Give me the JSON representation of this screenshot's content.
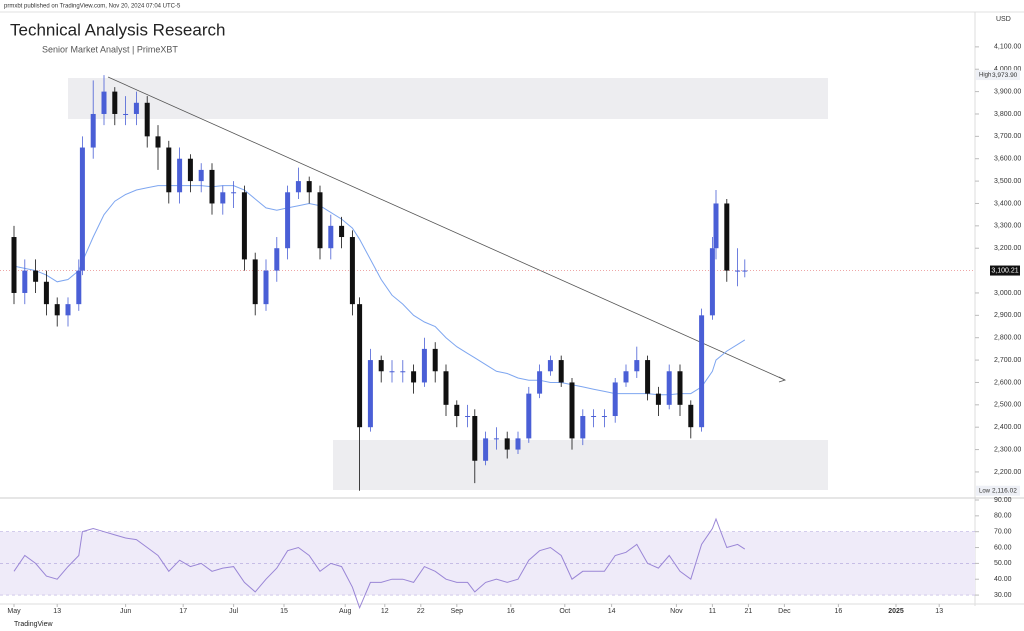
{
  "header": {
    "published": "prmxbt published on TradingView.com, Nov 20, 2024 07:04 UTC-5",
    "footer": "TradingView"
  },
  "chart_data": {
    "type": "candlestick",
    "title": "Technical Analysis Research",
    "subtitle": "Senior Market Analyst | PrimeXBT",
    "currency": "USD",
    "x": [
      "May 1",
      "May 4",
      "May 7",
      "May 10",
      "May 13",
      "May 16",
      "May 19",
      "May 20",
      "May 23",
      "May 26",
      "May 29",
      "Jun 1",
      "Jun 4",
      "Jun 7",
      "Jun 10",
      "Jun 13",
      "Jun 16",
      "Jun 19",
      "Jun 22",
      "Jun 25",
      "Jun 28",
      "Jul 1",
      "Jul 4",
      "Jul 7",
      "Jul 10",
      "Jul 13",
      "Jul 16",
      "Jul 19",
      "Jul 22",
      "Jul 25",
      "Jul 28",
      "Jul 31",
      "Aug 3",
      "Aug 5",
      "Aug 8",
      "Aug 11",
      "Aug 14",
      "Aug 17",
      "Aug 20",
      "Aug 23",
      "Aug 26",
      "Aug 29",
      "Sep 1",
      "Sep 4",
      "Sep 6",
      "Sep 9",
      "Sep 12",
      "Sep 15",
      "Sep 18",
      "Sep 21",
      "Sep 24",
      "Sep 27",
      "Sep 30",
      "Oct 3",
      "Oct 6",
      "Oct 9",
      "Oct 12",
      "Oct 15",
      "Oct 18",
      "Oct 21",
      "Oct 24",
      "Oct 27",
      "Oct 30",
      "Nov 2",
      "Nov 5",
      "Nov 8",
      "Nov 11",
      "Nov 12",
      "Nov 15",
      "Nov 18",
      "Nov 20"
    ],
    "open": [
      3250,
      3000,
      3100,
      3050,
      2950,
      2900,
      2950,
      3100,
      3650,
      3800,
      3900,
      3800,
      3800,
      3850,
      3700,
      3650,
      3450,
      3600,
      3500,
      3550,
      3400,
      3450,
      3450,
      3150,
      2950,
      3100,
      3200,
      3450,
      3500,
      3450,
      3200,
      3300,
      3250,
      2950,
      2400,
      2700,
      2650,
      2650,
      2650,
      2600,
      2750,
      2650,
      2500,
      2450,
      2450,
      2250,
      2350,
      2350,
      2300,
      2350,
      2550,
      2650,
      2700,
      2600,
      2350,
      2450,
      2450,
      2450,
      2600,
      2650,
      2700,
      2550,
      2500,
      2650,
      2500,
      2400,
      2900,
      3200,
      3400,
      3100,
      3100
    ],
    "high": [
      3300,
      3150,
      3150,
      3100,
      2980,
      2980,
      3150,
      3700,
      3950,
      3973.9,
      3920,
      3880,
      3900,
      3880,
      3750,
      3680,
      3650,
      3620,
      3580,
      3580,
      3480,
      3500,
      3480,
      3180,
      3150,
      3250,
      3480,
      3560,
      3520,
      3480,
      3350,
      3340,
      3280,
      2980,
      2750,
      2720,
      2700,
      2700,
      2680,
      2800,
      2780,
      2680,
      2520,
      2500,
      2480,
      2380,
      2400,
      2380,
      2380,
      2580,
      2680,
      2720,
      2720,
      2620,
      2480,
      2480,
      2480,
      2620,
      2680,
      2760,
      2720,
      2580,
      2680,
      2680,
      2520,
      2930,
      3250,
      3460,
      3420,
      3200,
      3150
    ],
    "low": [
      2950,
      2950,
      3000,
      2900,
      2850,
      2850,
      2920,
      3080,
      3600,
      3750,
      3750,
      3750,
      3750,
      3650,
      3550,
      3400,
      3400,
      3450,
      3450,
      3350,
      3350,
      3380,
      3100,
      2900,
      2920,
      3050,
      3150,
      3420,
      3400,
      3150,
      3150,
      3200,
      2900,
      2116.02,
      2380,
      2600,
      2600,
      2600,
      2550,
      2580,
      2600,
      2450,
      2400,
      2400,
      2150,
      2230,
      2300,
      2260,
      2280,
      2330,
      2530,
      2630,
      2580,
      2300,
      2320,
      2400,
      2400,
      2420,
      2580,
      2620,
      2520,
      2450,
      2480,
      2450,
      2350,
      2380,
      2880,
      3150,
      3050,
      3030,
      3070
    ],
    "close": [
      3000,
      3100,
      3050,
      2950,
      2900,
      2950,
      3100,
      3650,
      3800,
      3900,
      3800,
      3800,
      3850,
      3700,
      3650,
      3450,
      3600,
      3500,
      3550,
      3400,
      3450,
      3450,
      3150,
      2950,
      3100,
      3200,
      3450,
      3500,
      3450,
      3200,
      3300,
      3250,
      2950,
      2400,
      2700,
      2650,
      2650,
      2650,
      2600,
      2750,
      2650,
      2500,
      2450,
      2450,
      2250,
      2350,
      2350,
      2300,
      2350,
      2550,
      2650,
      2700,
      2600,
      2350,
      2450,
      2450,
      2450,
      2600,
      2650,
      2700,
      2550,
      2500,
      2650,
      2500,
      2400,
      2900,
      3200,
      3400,
      3100,
      3100,
      3100.21
    ],
    "up_color": "#4a5fd6",
    "down_color": "#111111",
    "last_value_label": "3,100.21",
    "moving_average": {
      "color": "#7ea6f0",
      "values": [
        3120,
        3110,
        3100,
        3080,
        3050,
        3060,
        3100,
        3140,
        3250,
        3350,
        3410,
        3440,
        3460,
        3470,
        3480,
        3480,
        3480,
        3480,
        3480,
        3475,
        3480,
        3480,
        3460,
        3420,
        3380,
        3370,
        3380,
        3390,
        3400,
        3390,
        3360,
        3330,
        3290,
        3240,
        3150,
        3060,
        2990,
        2950,
        2900,
        2870,
        2850,
        2800,
        2760,
        2730,
        2710,
        2680,
        2650,
        2640,
        2620,
        2610,
        2610,
        2600,
        2600,
        2590,
        2580,
        2570,
        2560,
        2550,
        2550,
        2550,
        2550,
        2545,
        2545,
        2550,
        2550,
        2580,
        2650,
        2700,
        2740,
        2770,
        2790
      ]
    },
    "extremes": [
      {
        "name": "High",
        "value": 3973.9,
        "value_label": "3,973.90"
      },
      {
        "name": "Low",
        "value": 2116.02,
        "value_label": "2,116.02"
      }
    ],
    "ylim": [
      2088,
      4229
    ],
    "yticks": [
      {
        "value": 2200,
        "label": "2,200.00"
      },
      {
        "value": 2300,
        "label": "2,300.00"
      },
      {
        "value": 2400,
        "label": "2,400.00"
      },
      {
        "value": 2500,
        "label": "2,500.00"
      },
      {
        "value": 2600,
        "label": "2,600.00"
      },
      {
        "value": 2700,
        "label": "2,700.00"
      },
      {
        "value": 2800,
        "label": "2,800.00"
      },
      {
        "value": 2900,
        "label": "2,900.00"
      },
      {
        "value": 3000,
        "label": "3,000.00"
      },
      {
        "value": 3200,
        "label": "3,200.00"
      },
      {
        "value": 3300,
        "label": "3,300.00"
      },
      {
        "value": 3400,
        "label": "3,400.00"
      },
      {
        "value": 3500,
        "label": "3,500.00"
      },
      {
        "value": 3600,
        "label": "3,600.00"
      },
      {
        "value": 3700,
        "label": "3,700.00"
      },
      {
        "value": 3800,
        "label": "3,800.00"
      },
      {
        "value": 3900,
        "label": "3,900.00"
      },
      {
        "value": 4000,
        "label": "4,000.00"
      },
      {
        "value": 4100,
        "label": "4,100.00"
      }
    ],
    "xticks": [
      {
        "value": "May 1",
        "label": "May"
      },
      {
        "value": "May 13",
        "label": "13"
      },
      {
        "value": "Jun 1",
        "label": "Jun"
      },
      {
        "value": "Jun 17",
        "label": "17"
      },
      {
        "value": "Jul 1",
        "label": "Jul"
      },
      {
        "value": "Jul 15",
        "label": "15"
      },
      {
        "value": "Aug 1",
        "label": "Aug"
      },
      {
        "value": "Aug 12",
        "label": "12"
      },
      {
        "value": "Aug 22",
        "label": "22"
      },
      {
        "value": "Sep 1",
        "label": "Sep"
      },
      {
        "value": "Sep 16",
        "label": "16"
      },
      {
        "value": "Oct 1",
        "label": "Oct"
      },
      {
        "value": "Oct 14",
        "label": "14"
      },
      {
        "value": "Nov 1",
        "label": "Nov"
      },
      {
        "value": "Nov 11",
        "label": "11"
      },
      {
        "value": "Nov 21",
        "label": "21"
      },
      {
        "value": "Dec 1",
        "label": "Dec"
      },
      {
        "value": "Dec 16",
        "label": "16"
      },
      {
        "value": "Jan 1",
        "label": "2025"
      },
      {
        "value": "Jan 13",
        "label": "13"
      }
    ],
    "rsi": {
      "color": "#9a86d6",
      "values": [
        45,
        55,
        50,
        42,
        40,
        48,
        55,
        70,
        72,
        70,
        68,
        66,
        65,
        60,
        55,
        45,
        52,
        48,
        50,
        45,
        47,
        48,
        38,
        32,
        40,
        47,
        58,
        60,
        55,
        45,
        50,
        48,
        35,
        22,
        38,
        38,
        40,
        40,
        38,
        48,
        45,
        40,
        38,
        38,
        32,
        38,
        40,
        38,
        40,
        52,
        58,
        60,
        55,
        40,
        45,
        45,
        45,
        55,
        57,
        62,
        50,
        47,
        55,
        45,
        40,
        62,
        72,
        78,
        60,
        62,
        59
      ],
      "ylim": [
        25,
        90
      ],
      "yticks": [
        {
          "value": 30,
          "label": "30.00"
        },
        {
          "value": 40,
          "label": "40.00"
        },
        {
          "value": 50,
          "label": "50.00"
        },
        {
          "value": 60,
          "label": "60.00"
        },
        {
          "value": 70,
          "label": "70.00"
        },
        {
          "value": 80,
          "label": "80.00"
        },
        {
          "value": 90,
          "label": "90.00"
        }
      ]
    }
  }
}
